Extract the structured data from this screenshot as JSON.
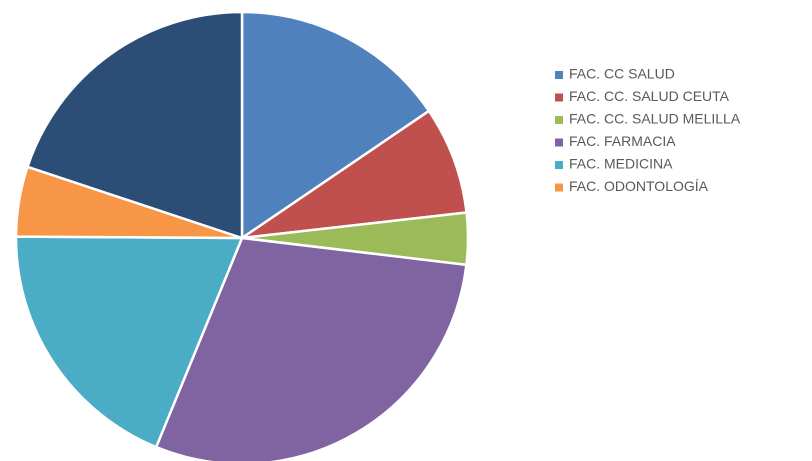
{
  "chart_data": {
    "type": "pie",
    "categories": [
      "FAC. CC SALUD",
      "FAC. CC. SALUD CEUTA",
      "FAC. CC. SALUD MELILLA",
      "FAC. FARMACIA",
      "FAC. MEDICINA",
      "FAC. ODONTOLOGÍA",
      null
    ],
    "values": [
      15.5,
      7.7,
      3.7,
      29.3,
      18.9,
      5.0,
      19.9
    ],
    "colors": [
      "#4f81bd",
      "#c0504d",
      "#9bbb59",
      "#8064a2",
      "#4bacc6",
      "#f79646",
      "#2c4d75"
    ],
    "legend": "right"
  }
}
